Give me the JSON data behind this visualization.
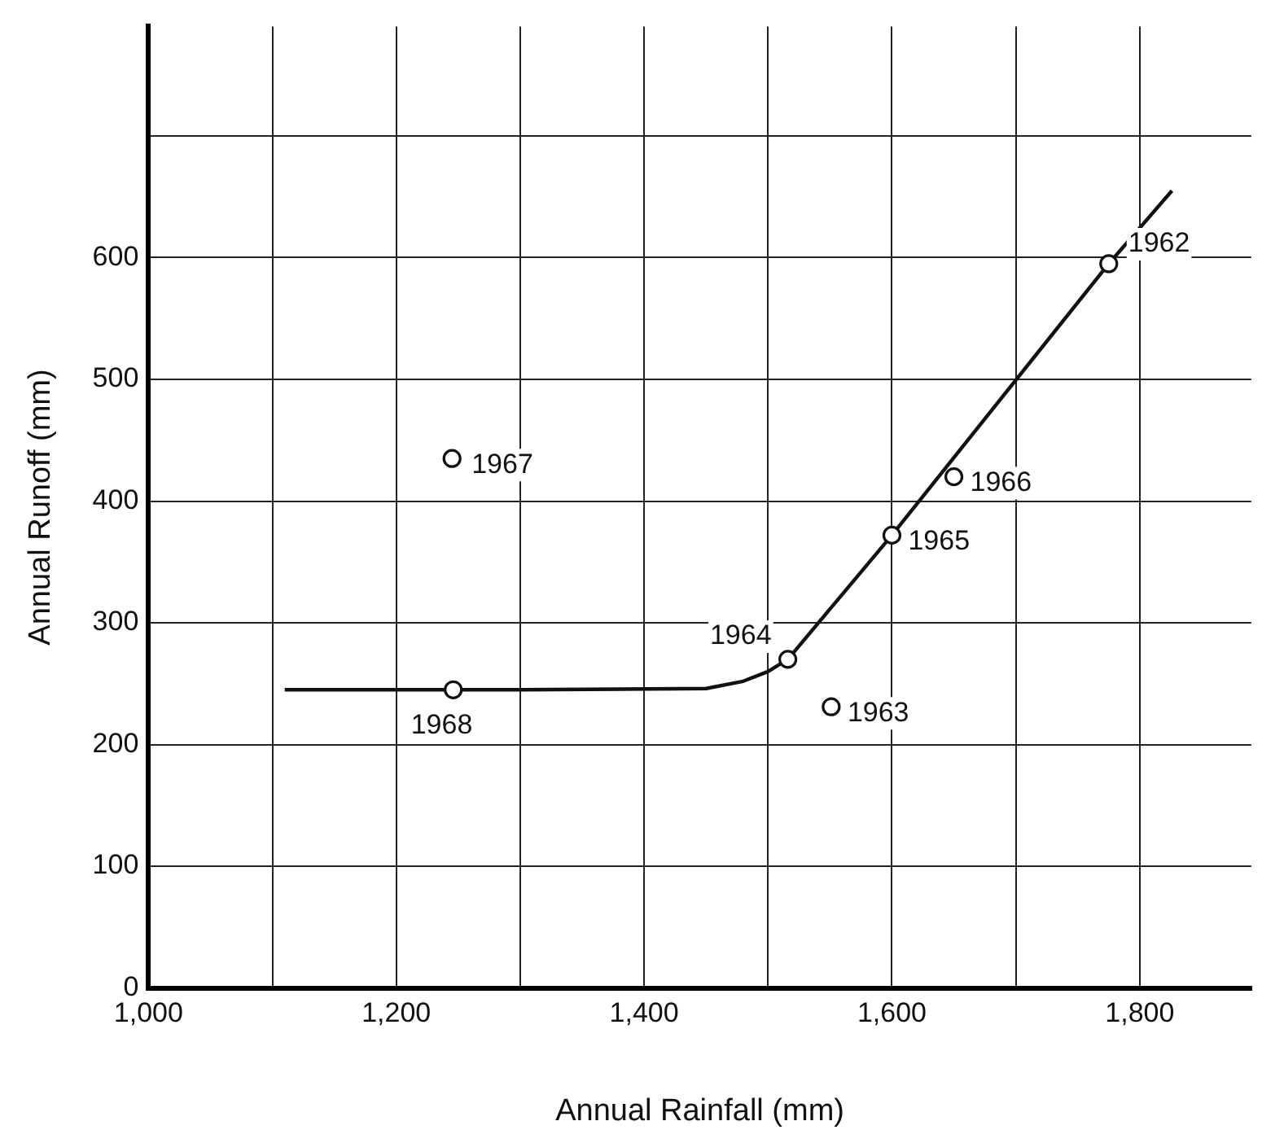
{
  "chart_data": {
    "type": "scatter",
    "xlabel": "Annual Rainfall (mm)",
    "ylabel": "Annual Runoff (mm)",
    "series": [
      {
        "color": "#111111",
        "marker": "circle",
        "x": [
          1775,
          1551,
          1516,
          1600,
          1650,
          1245,
          1246
        ],
        "values": [
          595,
          231,
          270,
          372,
          420,
          435,
          245
        ]
      },
      {
        "type": "line",
        "color": "#111111",
        "marker": "none",
        "line_style": "solid",
        "x": [
          1110,
          1300,
          1450,
          1480,
          1500,
          1516,
          1600,
          1775,
          1826
        ],
        "values": [
          245,
          245,
          246,
          252,
          260,
          270,
          372,
          595,
          655
        ]
      }
    ],
    "annotations": [
      {
        "text": "1962",
        "x": 1775,
        "y": 595
      },
      {
        "text": "1963",
        "x": 1551,
        "y": 231
      },
      {
        "text": "1964",
        "x": 1516,
        "y": 270
      },
      {
        "text": "1965",
        "x": 1600,
        "y": 372
      },
      {
        "text": "1966",
        "x": 1650,
        "y": 420
      },
      {
        "text": "1967",
        "x": 1245,
        "y": 435
      },
      {
        "text": "1968",
        "x": 1246,
        "y": 245
      }
    ],
    "xlim": [
      1000,
      1890
    ],
    "xticks": [
      {
        "value": 1000,
        "label": "1,000"
      },
      {
        "value": 1100,
        "label": null
      },
      {
        "value": 1200,
        "label": "1,200"
      },
      {
        "value": 1300,
        "label": null
      },
      {
        "value": 1400,
        "label": "1,400"
      },
      {
        "value": 1500,
        "label": null
      },
      {
        "value": 1600,
        "label": "1,600"
      },
      {
        "value": 1700,
        "label": null
      },
      {
        "value": 1800,
        "label": "1,800"
      }
    ],
    "ylim": [
      0,
      790
    ],
    "yticks": [
      0,
      100,
      200,
      300,
      400,
      500,
      600,
      {
        "value": 700,
        "label": null
      }
    ],
    "grid": true,
    "legend": false
  }
}
